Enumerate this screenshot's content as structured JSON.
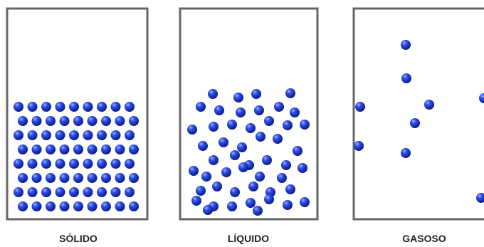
{
  "states": [
    {
      "label": "SÓLIDO"
    },
    {
      "label": "LÍQUIDO"
    },
    {
      "label": "GASOSO"
    }
  ]
}
